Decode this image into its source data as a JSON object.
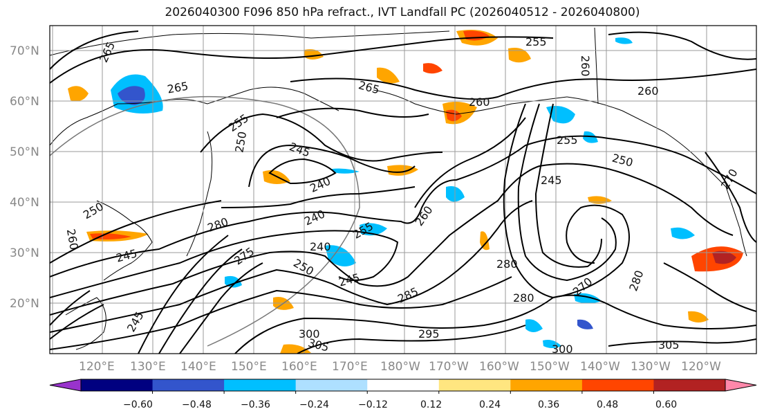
{
  "title": "2026040300 F096 850 hPa refract., IVT Landfall PC (2026040512 - 2026040800)",
  "lat_labels": [
    "70°N",
    "60°N",
    "50°N",
    "40°N",
    "30°N",
    "20°N"
  ],
  "lon_labels": [
    "120°E",
    "130°E",
    "140°E",
    "150°E",
    "160°E",
    "170°E",
    "180°W",
    "170°W",
    "160°W",
    "150°W",
    "140°W",
    "130°W",
    "120°W"
  ],
  "colorbar": {
    "ticks": [
      "−0.60",
      "−0.48",
      "−0.36",
      "−0.24",
      "−0.12",
      "0.12",
      "0.24",
      "0.36",
      "0.48",
      "0.60"
    ],
    "colors": [
      "#9933cc",
      "#000080",
      "#3355cc",
      "#00bfff",
      "#aee0ff",
      "#ffffff",
      "#ffe680",
      "#ffa500",
      "#ff4500",
      "#b22222",
      "#ff88aa"
    ]
  },
  "contour_labels": [
    "265",
    "255",
    "260",
    "265",
    "260",
    "260",
    "265",
    "255",
    "250",
    "245",
    "240",
    "255",
    "260",
    "245",
    "250",
    "245",
    "240",
    "255",
    "280",
    "275",
    "270",
    "240",
    "250",
    "245",
    "260",
    "280",
    "270",
    "280",
    "285",
    "280",
    "300",
    "305",
    "295",
    "300",
    "305",
    "250",
    "245"
  ]
}
